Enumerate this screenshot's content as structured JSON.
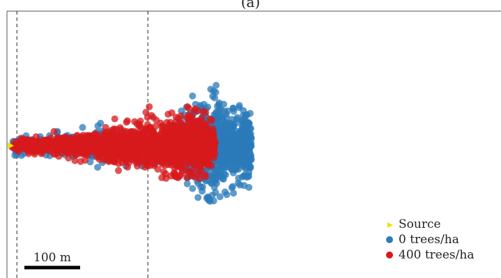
{
  "panel_label": "(a)",
  "scale_bar": {
    "label": "100 m",
    "length_m": 100
  },
  "colors": {
    "source": "#f2e000",
    "zero_trees": "#2b7bb9",
    "four_hundred_trees": "#d7191c"
  },
  "chart_data": {
    "type": "scatter",
    "title": "",
    "xlabel": "",
    "ylabel": "",
    "grid": false,
    "legend_position": "bottom-right",
    "units": "m",
    "x_range_m": [
      -5,
      545
    ],
    "y_range_m": [
      -120,
      245
    ],
    "reference_lines_x_m": [
      9,
      244
    ],
    "source": {
      "name": "Source",
      "marker": "triangle",
      "x": 0,
      "y": 0
    },
    "series": [
      {
        "name": "0 trees/ha",
        "marker": "circle",
        "plume": {
          "n_points": 1100,
          "x_min_m": 0,
          "x_max_m": 430,
          "halfwidth_start_m": 8,
          "halfwidth_end_m": 90,
          "extent_y_m": [
            -100,
            110
          ]
        }
      },
      {
        "name": "400 trees/ha",
        "marker": "circle",
        "plume": {
          "n_points": 1500,
          "x_min_m": 0,
          "x_max_m": 365,
          "halfwidth_start_m": 10,
          "halfwidth_end_m": 58,
          "extent_y_m": [
            -60,
            70
          ]
        }
      }
    ]
  }
}
